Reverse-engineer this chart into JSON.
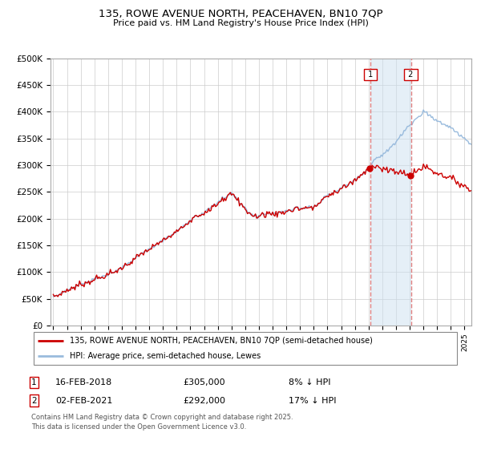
{
  "title": "135, ROWE AVENUE NORTH, PEACEHAVEN, BN10 7QP",
  "subtitle": "Price paid vs. HM Land Registry's House Price Index (HPI)",
  "ylabel_ticks": [
    "£0",
    "£50K",
    "£100K",
    "£150K",
    "£200K",
    "£250K",
    "£300K",
    "£350K",
    "£400K",
    "£450K",
    "£500K"
  ],
  "ytick_vals": [
    0,
    50000,
    100000,
    150000,
    200000,
    250000,
    300000,
    350000,
    400000,
    450000,
    500000
  ],
  "xlim_start": 1994.8,
  "xlim_end": 2025.5,
  "ylim": [
    0,
    500000
  ],
  "red_color": "#cc0000",
  "blue_color": "#99bbdd",
  "annotation_box_color": "#cc0000",
  "vertical_line_color": "#e08080",
  "shading_color": "#cce0f0",
  "legend_label_red": "135, ROWE AVENUE NORTH, PEACEHAVEN, BN10 7QP (semi-detached house)",
  "legend_label_blue": "HPI: Average price, semi-detached house, Lewes",
  "marker1_date": 2018.12,
  "marker1_price": 305000,
  "marker2_date": 2021.09,
  "marker2_price": 292000,
  "footnote3": "Contains HM Land Registry data © Crown copyright and database right 2025.",
  "footnote4": "This data is licensed under the Open Government Licence v3.0.",
  "background_color": "#ffffff",
  "grid_color": "#cccccc"
}
